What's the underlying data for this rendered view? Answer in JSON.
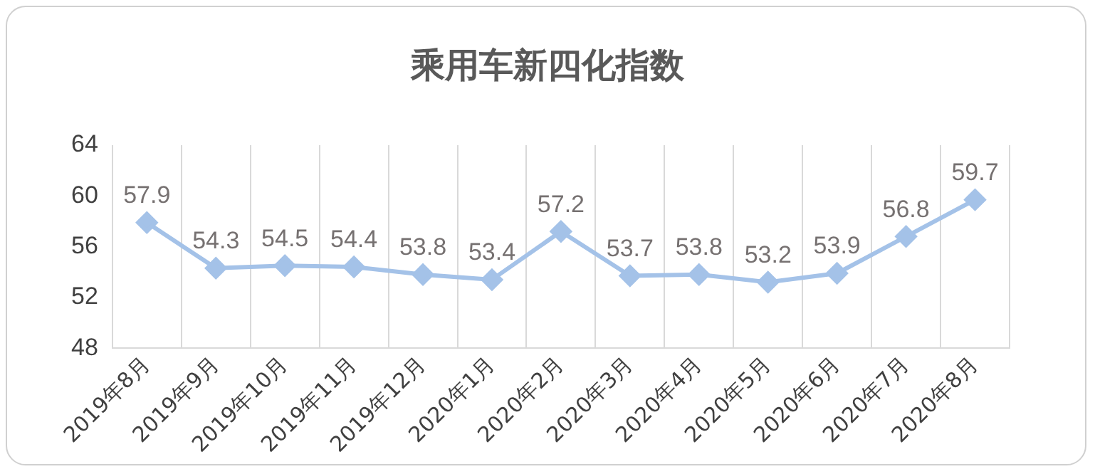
{
  "chart_data": {
    "type": "line",
    "title": "乘用车新四化指数",
    "categories": [
      "2019年8月",
      "2019年9月",
      "2019年10月",
      "2019年11月",
      "2019年12月",
      "2020年1月",
      "2020年2月",
      "2020年3月",
      "2020年4月",
      "2020年5月",
      "2020年6月",
      "2020年7月",
      "2020年8月"
    ],
    "series": [
      {
        "color": "#a4c2e8",
        "values": [
          57.9,
          54.3,
          54.5,
          54.4,
          53.8,
          53.4,
          57.2,
          53.7,
          53.8,
          53.2,
          53.9,
          56.8,
          59.7
        ]
      }
    ],
    "ylim": [
      48,
      64
    ],
    "yticks": [
      48,
      52,
      56,
      60,
      64
    ],
    "grid": "x",
    "legend": false,
    "marker": "diamond",
    "line_style": "solid",
    "data_labels": true
  }
}
